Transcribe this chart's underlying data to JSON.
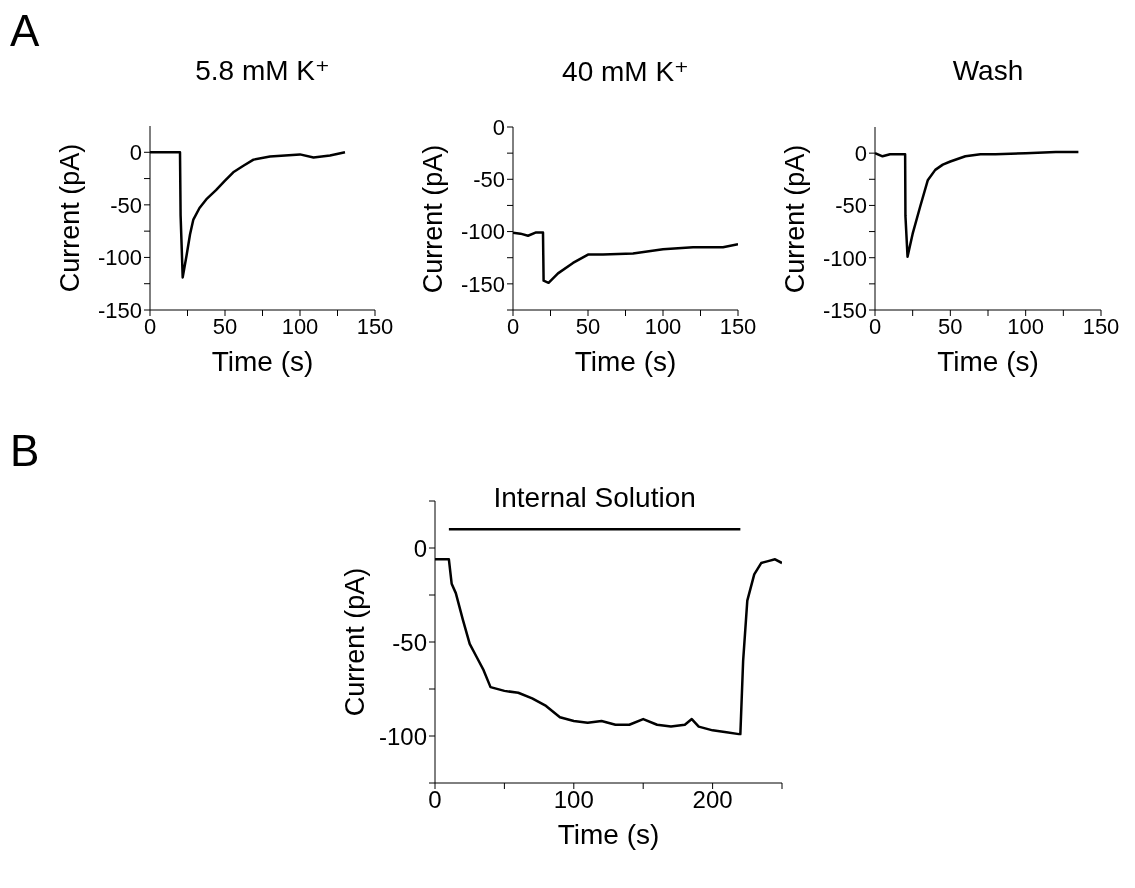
{
  "chart_data": [
    {
      "type": "line",
      "title": "5.8 mM K⁺",
      "xlabel": "Time (s)",
      "ylabel": "Current (pA)",
      "annotations": [
        "A"
      ],
      "xlim": [
        0,
        150
      ],
      "xticks": [
        0,
        {
          "value": 25,
          "label": null
        },
        50,
        {
          "value": 75,
          "label": null
        },
        100,
        {
          "value": 125,
          "label": null
        },
        150
      ],
      "ylim": [
        -150,
        25
      ],
      "yticks": [
        -150,
        {
          "value": -125,
          "label": null
        },
        -100,
        {
          "value": -75,
          "label": null
        },
        -50,
        {
          "value": -25,
          "label": null
        },
        0
      ],
      "series": [
        {
          "color": "#000000",
          "x": [
            0,
            10,
            20,
            20.4,
            21.8,
            24.4,
            26.7,
            28.9,
            33,
            38,
            44,
            50,
            55.5,
            62,
            69,
            80,
            90,
            100,
            109,
            120,
            130
          ],
          "values": [
            0,
            0,
            0,
            -60,
            -119,
            -98,
            -78,
            -64,
            -53,
            -44,
            -36,
            -27,
            -19,
            -13,
            -7,
            -4,
            -3,
            -2,
            -5,
            -3,
            0
          ]
        }
      ]
    },
    {
      "type": "line",
      "title": "40 mM K⁺",
      "xlabel": "Time (s)",
      "ylabel": "Current (pA)",
      "xlim": [
        0,
        150
      ],
      "xticks": [
        0,
        {
          "value": 25,
          "label": null
        },
        50,
        {
          "value": 75,
          "label": null
        },
        100,
        {
          "value": 125,
          "label": null
        },
        150
      ],
      "ylim": [
        -175,
        0
      ],
      "yticks": [
        {
          "value": -175,
          "label": null
        },
        -150,
        {
          "value": -125,
          "label": null
        },
        -100,
        {
          "value": -75,
          "label": null
        },
        -50,
        {
          "value": -25,
          "label": null
        },
        0
      ],
      "series": [
        {
          "color": "#000000",
          "x": [
            0,
            5,
            10,
            15,
            20,
            20.4,
            23.7,
            30,
            40,
            50,
            60,
            80,
            100,
            120,
            140,
            150
          ],
          "values": [
            -101,
            -102,
            -104,
            -101,
            -101,
            -147,
            -149,
            -140,
            -130,
            -122,
            -122,
            -121,
            -117,
            -115,
            -115,
            -112
          ]
        }
      ]
    },
    {
      "type": "line",
      "title": "Wash",
      "xlabel": "Time (s)",
      "ylabel": "Current (pA)",
      "xlim": [
        0,
        150
      ],
      "xticks": [
        0,
        {
          "value": 25,
          "label": null
        },
        50,
        {
          "value": 75,
          "label": null
        },
        100,
        {
          "value": 125,
          "label": null
        },
        150
      ],
      "ylim": [
        -150,
        25
      ],
      "yticks": [
        -150,
        {
          "value": -125,
          "label": null
        },
        -100,
        {
          "value": -75,
          "label": null
        },
        -50,
        {
          "value": -25,
          "label": null
        },
        0
      ],
      "series": [
        {
          "color": "#000000",
          "x": [
            0,
            5,
            10,
            20,
            20.2,
            21.6,
            25,
            30,
            35,
            40,
            45,
            50,
            60,
            70,
            80,
            100,
            120,
            135
          ],
          "values": [
            0,
            -3,
            -1,
            -1,
            -60,
            -99,
            -77,
            -51,
            -26,
            -16,
            -11,
            -8,
            -3,
            -1,
            -1,
            0,
            1,
            1
          ]
        }
      ]
    },
    {
      "type": "line",
      "xlabel": "Time (s)",
      "ylabel": "Current (pA)",
      "annotations": [
        {
          "text": "Internal Solution",
          "x": 115,
          "y": 10
        },
        "B"
      ],
      "xlim": [
        0,
        250
      ],
      "xticks": [
        0,
        {
          "value": 50,
          "label": null
        },
        100,
        {
          "value": 150,
          "label": null
        },
        200,
        {
          "value": 250,
          "label": null
        }
      ],
      "ylim": [
        -125,
        25
      ],
      "yticks": [
        {
          "value": -125,
          "label": null
        },
        -100,
        {
          "value": -75,
          "label": null
        },
        -50,
        {
          "value": -25,
          "label": null
        },
        0,
        {
          "value": 25,
          "label": null
        }
      ],
      "series": [
        {
          "color": "#000000",
          "x": [
            0,
            10,
            12,
            15,
            20,
            25,
            30,
            35,
            40,
            50,
            60,
            70,
            80,
            90,
            100,
            110,
            120,
            130,
            140,
            150,
            160,
            170,
            180,
            185,
            190,
            200,
            210,
            219,
            220,
            222,
            225,
            230,
            235,
            240,
            245,
            250
          ],
          "values": [
            -6,
            -6,
            -19,
            -24,
            -38,
            -51,
            -58,
            -65,
            -74,
            -76,
            -77,
            -80,
            -84,
            -90,
            -92,
            -93,
            -92,
            -94,
            -94,
            -91,
            -94,
            -95,
            -94,
            -91,
            -95,
            -97,
            -98,
            -99,
            -99,
            -60,
            -28,
            -14,
            -8,
            -7,
            -6,
            -8
          ]
        },
        {
          "color": "#000000",
          "x": [
            10,
            220
          ],
          "values": [
            10,
            10
          ]
        }
      ]
    }
  ]
}
